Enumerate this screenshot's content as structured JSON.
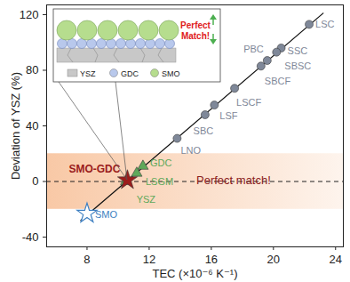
{
  "chart_data": {
    "type": "scatter",
    "x_label": "TEC (×10⁻⁶ K⁻¹)",
    "y_label": "Deviation of YSZ (%)",
    "xlim": [
      5.4,
      24.5
    ],
    "ylim": [
      -47,
      127
    ],
    "xticks": [
      8,
      12,
      16,
      20,
      24
    ],
    "yticks": [
      -40,
      0,
      40,
      80,
      120
    ],
    "points": [
      {
        "label": "LSC",
        "x": 22.3,
        "y": 113,
        "color": "#7f8899",
        "marker": "circle"
      },
      {
        "label": "PBC",
        "x": 19.6,
        "y": 87,
        "color": "#7f8899",
        "marker": "circle"
      },
      {
        "label": "SSC",
        "x": 20.5,
        "y": 96,
        "color": "#7f8899",
        "marker": "circle"
      },
      {
        "label": "SBSC",
        "x": 20.2,
        "y": 93,
        "color": "#7f8899",
        "marker": "circle"
      },
      {
        "label": "SBCF",
        "x": 19.2,
        "y": 83,
        "color": "#7f8899",
        "marker": "circle"
      },
      {
        "label": "LSCF",
        "x": 17.5,
        "y": 67,
        "color": "#7f8899",
        "marker": "circle"
      },
      {
        "label": "LSF",
        "x": 16.2,
        "y": 55,
        "color": "#7f8899",
        "marker": "circle"
      },
      {
        "label": "SBC",
        "x": 15.6,
        "y": 48,
        "color": "#7f8899",
        "marker": "circle"
      },
      {
        "label": "LNO",
        "x": 13.8,
        "y": 31,
        "color": "#7f8899",
        "marker": "circle"
      },
      {
        "label": "GDC",
        "x": 11.6,
        "y": 11,
        "color": "#5fa85a",
        "marker": "triangle"
      },
      {
        "label": "LSGM",
        "x": 11.2,
        "y": 6,
        "color": "#5fa85a",
        "marker": "triangle"
      },
      {
        "label": "YSZ",
        "x": 10.5,
        "y": 0,
        "color": "#5fa85a",
        "marker": "triangle"
      },
      {
        "label": "SMO-GDC",
        "x": 10.6,
        "y": 1,
        "color": "#9b1c1c",
        "marker": "star"
      },
      {
        "label": "SMO",
        "x": 8.0,
        "y": -23,
        "color": "#3d7fc1",
        "marker": "star-open"
      }
    ],
    "fit_line": {
      "x": [
        7.6,
        23.2
      ],
      "y": [
        -28,
        121
      ],
      "color": "#111111"
    },
    "band": {
      "y": [
        -20,
        20
      ],
      "color": "#f4a46a"
    },
    "reference_line": {
      "y": 0,
      "line_style": "dashed",
      "label": "Perfect match!",
      "color": "#8b1c1c"
    },
    "inset": {
      "title": "Perfect Match!",
      "labels": [
        "YSZ",
        "GDC",
        "SMO"
      ],
      "colors": [
        "#c8c8c8",
        "#b8c8ec",
        "#b6dd8e"
      ]
    }
  }
}
